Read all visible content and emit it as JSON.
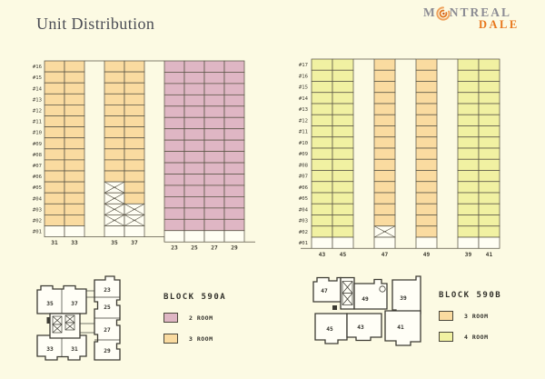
{
  "page": {
    "title": "Unit Distribution",
    "background": "#FCFAE3"
  },
  "logo": {
    "word1_pre": "M",
    "word1_post": "NTREAL",
    "word2": "DALE",
    "gray": "#8C8C94",
    "orange": "#E8761B"
  },
  "colors": {
    "room2": "#DFB6C4",
    "room3": "#FADBA0",
    "room4": "#F1F1A2",
    "empty": "#FFFEF3",
    "line": "#5A5546",
    "text": "#3F3D33"
  },
  "chart_data": [
    {
      "type": "heatmap",
      "title": "BLOCK 590A",
      "floors_top_to_bottom": [
        "#16",
        "#15",
        "#14",
        "#13",
        "#12",
        "#11",
        "#10",
        "#09",
        "#08",
        "#07",
        "#06",
        "#05",
        "#04",
        "#03",
        "#02",
        "#01"
      ],
      "legend": [
        {
          "label": "2 ROOM",
          "color_key": "room2"
        },
        {
          "label": "3 ROOM",
          "color_key": "room3"
        }
      ],
      "groups": [
        {
          "stacks": [
            {
              "unit": "31",
              "rooms": "3 ROOM",
              "color_key": "room3",
              "filled_from": 2,
              "filled_to": 16,
              "void_floors": []
            },
            {
              "unit": "33",
              "rooms": "3 ROOM",
              "color_key": "room3",
              "filled_from": 2,
              "filled_to": 16,
              "void_floors": []
            }
          ]
        },
        {
          "stacks": [
            {
              "unit": "35",
              "rooms": "3 ROOM",
              "color_key": "room3",
              "filled_from": 6,
              "filled_to": 16,
              "void_floors": [
                2,
                3,
                4,
                5
              ]
            },
            {
              "unit": "37",
              "rooms": "3 ROOM",
              "color_key": "room3",
              "filled_from": 4,
              "filled_to": 16,
              "void_floors": [
                2,
                3
              ]
            }
          ]
        },
        {
          "stacks": [
            {
              "unit": "23",
              "rooms": "2 ROOM",
              "color_key": "room2",
              "filled_from": 2,
              "filled_to": 16,
              "void_floors": []
            },
            {
              "unit": "25",
              "rooms": "2 ROOM",
              "color_key": "room2",
              "filled_from": 2,
              "filled_to": 16,
              "void_floors": []
            },
            {
              "unit": "27",
              "rooms": "2 ROOM",
              "color_key": "room2",
              "filled_from": 2,
              "filled_to": 16,
              "void_floors": []
            },
            {
              "unit": "29",
              "rooms": "2 ROOM",
              "color_key": "room2",
              "filled_from": 2,
              "filled_to": 16,
              "void_floors": []
            }
          ]
        }
      ]
    },
    {
      "type": "heatmap",
      "title": "BLOCK 590B",
      "floors_top_to_bottom": [
        "#17",
        "#16",
        "#15",
        "#14",
        "#13",
        "#12",
        "#11",
        "#10",
        "#09",
        "#08",
        "#07",
        "#06",
        "#05",
        "#04",
        "#03",
        "#02",
        "#01"
      ],
      "legend": [
        {
          "label": "3 ROOM",
          "color_key": "room3"
        },
        {
          "label": "4 ROOM",
          "color_key": "room4"
        }
      ],
      "groups": [
        {
          "stacks": [
            {
              "unit": "43",
              "rooms": "4 ROOM",
              "color_key": "room4",
              "filled_from": 2,
              "filled_to": 17,
              "void_floors": []
            },
            {
              "unit": "45",
              "rooms": "4 ROOM",
              "color_key": "room4",
              "filled_from": 2,
              "filled_to": 17,
              "void_floors": []
            }
          ]
        },
        {
          "stacks": [
            {
              "unit": "47",
              "rooms": "3 ROOM",
              "color_key": "room3",
              "filled_from": 3,
              "filled_to": 17,
              "void_floors": [
                2
              ]
            }
          ]
        },
        {
          "stacks": [
            {
              "unit": "49",
              "rooms": "3 ROOM",
              "color_key": "room3",
              "filled_from": 2,
              "filled_to": 17,
              "void_floors": []
            }
          ]
        },
        {
          "stacks": [
            {
              "unit": "39",
              "rooms": "4 ROOM",
              "color_key": "room4",
              "filled_from": 2,
              "filled_to": 17,
              "void_floors": []
            },
            {
              "unit": "41",
              "rooms": "4 ROOM",
              "color_key": "room4",
              "filled_from": 2,
              "filled_to": 17,
              "void_floors": []
            }
          ]
        }
      ]
    }
  ],
  "plans": [
    {
      "block": "590A",
      "units": [
        "35",
        "37",
        "33",
        "31",
        "23",
        "25",
        "27",
        "29"
      ]
    },
    {
      "block": "590B",
      "units": [
        "47",
        "49",
        "39",
        "45",
        "43",
        "41"
      ]
    }
  ]
}
